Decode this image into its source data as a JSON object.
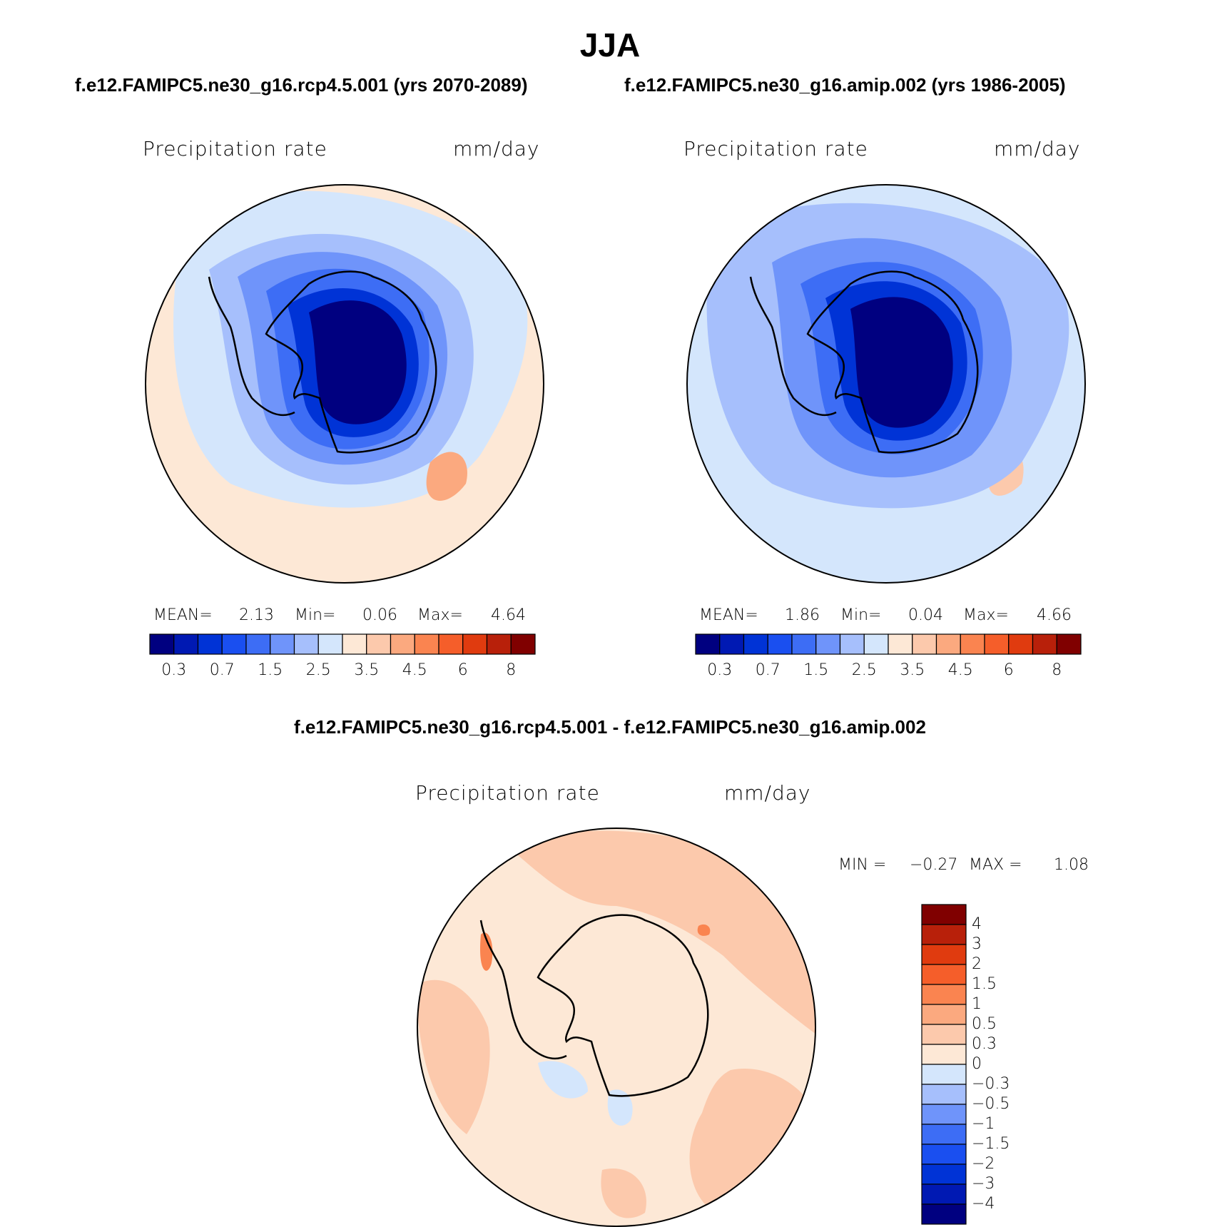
{
  "title": "JJA",
  "panels": [
    {
      "subtitle": "f.e12.FAMIPC5.ne30_g16.rcp4.5.001 (yrs 2070-2089)",
      "variable": "Precipitation rate",
      "units": "mm/day",
      "stats": {
        "mean_label": "MEAN=",
        "mean": "2.13",
        "min_label": "Min=",
        "min": "0.06",
        "max_label": "Max=",
        "max": "4.64"
      }
    },
    {
      "subtitle": "f.e12.FAMIPC5.ne30_g16.amip.002 (yrs 1986-2005)",
      "variable": "Precipitation rate",
      "units": "mm/day",
      "stats": {
        "mean_label": "MEAN=",
        "mean": "1.86",
        "min_label": "Min=",
        "min": "0.04",
        "max_label": "Max=",
        "max": "4.66"
      }
    }
  ],
  "colorbar": {
    "colors": [
      "#000080",
      "#0019b3",
      "#0033d6",
      "#1a4ff0",
      "#3d6df5",
      "#6f94fa",
      "#a6bffc",
      "#d4e6fc",
      "#fde8d6",
      "#fcc9ac",
      "#fba97f",
      "#fa8450",
      "#f55e2a",
      "#e03b0f",
      "#b8200a",
      "#800000"
    ],
    "tick_labels": [
      "0.3",
      "0.7",
      "1.5",
      "2.5",
      "3.5",
      "4.5",
      "6",
      "8"
    ]
  },
  "diff_panel": {
    "subtitle": "f.e12.FAMIPC5.ne30_g16.rcp4.5.001 - f.e12.FAMIPC5.ne30_g16.amip.002",
    "variable": "Precipitation rate",
    "units": "mm/day",
    "stats": {
      "min_label": "MIN =",
      "min": "−0.27",
      "max_label": "MAX =",
      "max": "1.08"
    },
    "colorbar": {
      "colors": [
        "#800000",
        "#b8200a",
        "#e03b0f",
        "#f55e2a",
        "#fa8450",
        "#fba97f",
        "#fcc9ac",
        "#fde8d6",
        "#d4e6fc",
        "#a6bffc",
        "#6f94fa",
        "#3d6df5",
        "#1a4ff0",
        "#0033d6",
        "#0019b3",
        "#000080"
      ],
      "tick_labels": [
        "4",
        "3",
        "2",
        "1.5",
        "1",
        "0.5",
        "0.3",
        "0",
        "−0.3",
        "−0.5",
        "−1",
        "−1.5",
        "−2",
        "−3",
        "−4"
      ]
    }
  }
}
